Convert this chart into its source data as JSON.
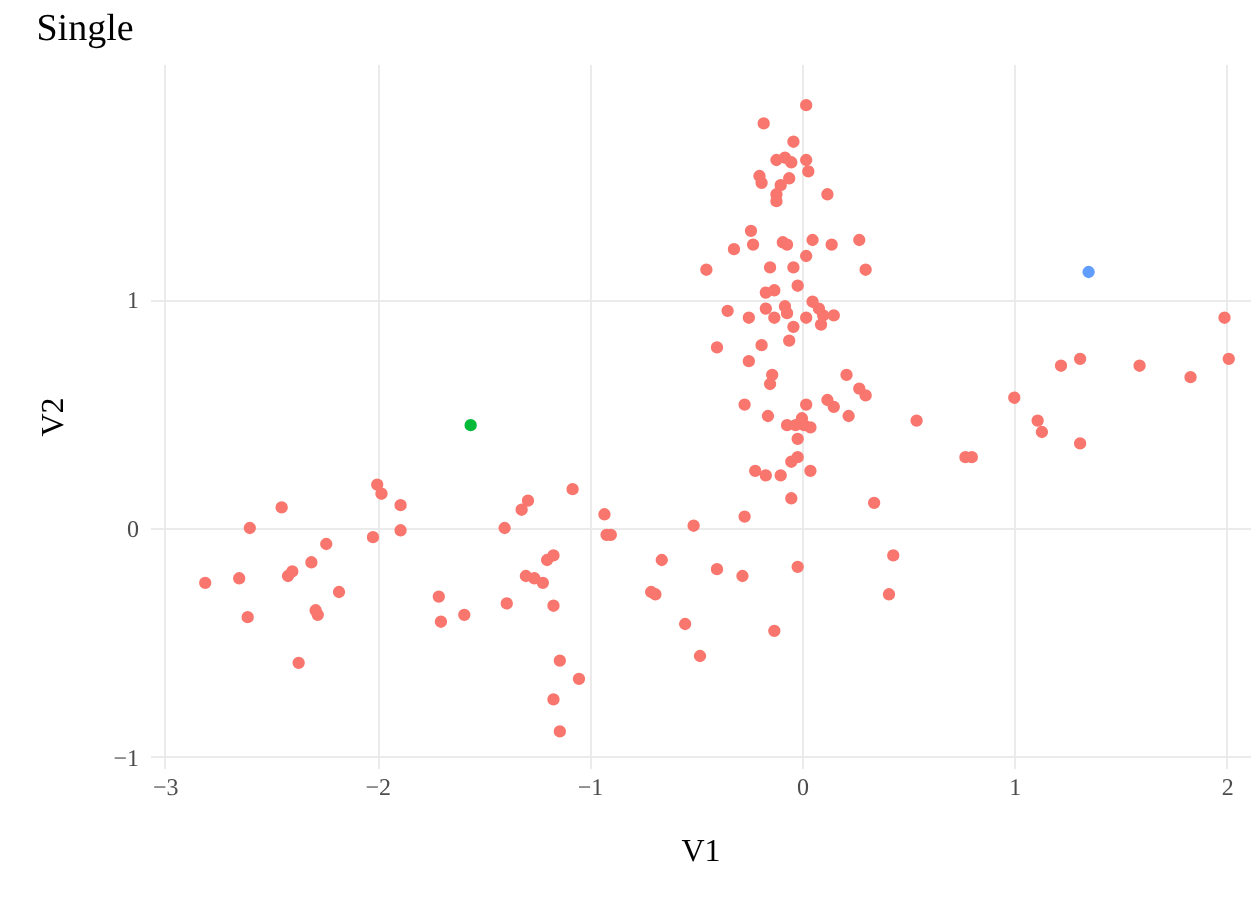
{
  "chart_data": {
    "type": "scatter",
    "title": "Single",
    "xlabel": "V1",
    "ylabel": "V2",
    "xlim": [
      -3.07,
      2.11
    ],
    "ylim": [
      -1.05,
      2.03
    ],
    "xticks": [
      -3,
      -2,
      -1,
      0,
      1,
      2
    ],
    "yticks": [
      -1,
      0,
      1
    ],
    "grid": true,
    "marker": "circle",
    "series": [
      {
        "color": "#f8766d",
        "x": [
          -2.81,
          -2.65,
          -2.6,
          -2.61,
          -2.45,
          -2.42,
          -2.4,
          -2.37,
          -2.31,
          -2.29,
          -2.28,
          -2.24,
          -2.18,
          -2.02,
          -2.0,
          -1.98,
          -1.89,
          -1.89,
          -1.71,
          -1.7,
          -1.59,
          -1.39,
          -1.4,
          -1.32,
          -1.29,
          -1.3,
          -1.26,
          -1.22,
          -1.2,
          -1.17,
          -1.17,
          -1.14,
          -1.05,
          -1.17,
          -1.14,
          -1.08,
          -0.93,
          -0.92,
          -0.9,
          -0.71,
          -0.69,
          -0.66,
          -0.55,
          -0.51,
          -0.48,
          -0.4,
          -0.28,
          -0.27,
          -0.13,
          -0.02,
          0.34,
          0.43,
          0.41,
          -0.05,
          -0.22,
          -0.17,
          -0.1,
          0.04,
          -0.05,
          -0.02,
          -0.02,
          -0.07,
          -0.03,
          0.0,
          0.01,
          0.04,
          -0.16,
          -0.27,
          0.02,
          0.12,
          0.15,
          0.22,
          0.21,
          0.27,
          0.3,
          0.54,
          -0.14,
          -0.15,
          0.02,
          -0.18,
          -0.04,
          -0.12,
          -0.08,
          -0.05,
          0.02,
          0.03,
          -0.2,
          -0.19,
          -0.06,
          -0.1,
          -0.12,
          -0.12,
          0.12,
          -0.24,
          -0.32,
          -0.23,
          -0.09,
          -0.07,
          0.05,
          0.14,
          0.27,
          -0.45,
          -0.15,
          -0.04,
          0.02,
          0.3,
          -0.02,
          -0.17,
          -0.13,
          -0.35,
          -0.25,
          -0.17,
          -0.08,
          -0.07,
          -0.13,
          0.02,
          0.05,
          0.08,
          0.1,
          0.15,
          0.09,
          -0.04,
          -0.06,
          -0.4,
          -0.19,
          -0.25,
          1.99,
          2.01,
          1.31,
          1.22,
          1.59,
          1.83,
          1.0,
          1.11,
          1.13,
          1.31,
          0.77,
          0.8
        ],
        "values": [
          -0.24,
          -0.22,
          0.0,
          -0.39,
          0.09,
          -0.21,
          -0.19,
          -0.59,
          -0.15,
          -0.36,
          -0.38,
          -0.07,
          -0.28,
          -0.04,
          0.19,
          0.15,
          0.1,
          -0.01,
          -0.3,
          -0.41,
          -0.38,
          -0.33,
          0.0,
          0.08,
          0.12,
          -0.21,
          -0.22,
          -0.24,
          -0.14,
          -0.12,
          -0.34,
          -0.58,
          -0.66,
          -0.75,
          -0.89,
          0.17,
          0.06,
          -0.03,
          -0.03,
          -0.28,
          -0.29,
          -0.14,
          -0.42,
          0.01,
          -0.56,
          -0.18,
          -0.21,
          0.05,
          -0.45,
          -0.17,
          0.11,
          -0.12,
          -0.29,
          0.13,
          0.25,
          0.23,
          0.23,
          0.25,
          0.29,
          0.31,
          0.39,
          0.45,
          0.45,
          0.48,
          0.45,
          0.44,
          0.49,
          0.54,
          0.54,
          0.56,
          0.53,
          0.49,
          0.67,
          0.61,
          0.58,
          0.47,
          0.67,
          0.63,
          1.85,
          1.77,
          1.69,
          1.61,
          1.62,
          1.6,
          1.61,
          1.56,
          1.54,
          1.51,
          1.53,
          1.5,
          1.46,
          1.43,
          1.46,
          1.3,
          1.22,
          1.24,
          1.25,
          1.24,
          1.26,
          1.24,
          1.26,
          1.13,
          1.14,
          1.14,
          1.19,
          1.13,
          1.06,
          1.03,
          1.04,
          0.95,
          0.92,
          0.96,
          0.97,
          0.94,
          0.92,
          0.92,
          0.99,
          0.96,
          0.93,
          0.93,
          0.89,
          0.88,
          0.82,
          0.79,
          0.8,
          0.73,
          0.92,
          0.74,
          0.74,
          0.71,
          0.71,
          0.66,
          0.57,
          0.47,
          0.42,
          0.37,
          0.31,
          0.31
        ]
      },
      {
        "color": "#00ba38",
        "x": [
          -1.56
        ],
        "values": [
          0.45
        ]
      },
      {
        "color": "#619cff",
        "x": [
          1.35
        ],
        "values": [
          1.12
        ]
      }
    ]
  }
}
